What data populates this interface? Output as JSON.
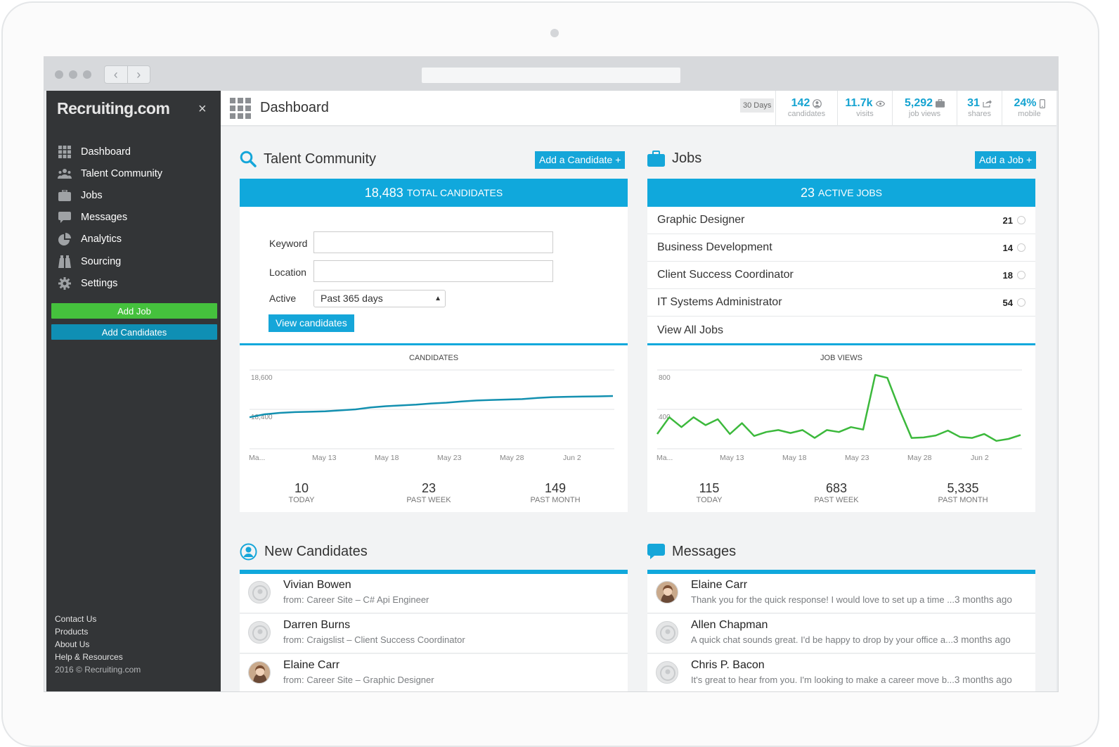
{
  "brand": "Recruiting.com",
  "page_title": "Dashboard",
  "sidebar": {
    "items": [
      {
        "label": "Dashboard",
        "icon": "grid-icon"
      },
      {
        "label": "Talent Community",
        "icon": "people-icon"
      },
      {
        "label": "Jobs",
        "icon": "briefcase-icon"
      },
      {
        "label": "Messages",
        "icon": "chat-icon"
      },
      {
        "label": "Analytics",
        "icon": "pie-chart-icon"
      },
      {
        "label": "Sourcing",
        "icon": "binoculars-icon"
      },
      {
        "label": "Settings",
        "icon": "gear-icon"
      }
    ],
    "add_job": "Add Job",
    "add_candidates": "Add Candidates",
    "footer": [
      "Contact Us",
      "Products",
      "About Us",
      "Help & Resources"
    ],
    "copyright": "2016 © Recruiting.com"
  },
  "header": {
    "period": "30 Days",
    "stats": [
      {
        "value": "142",
        "label": "candidates",
        "icon": "person-icon"
      },
      {
        "value": "11.7k",
        "label": "visits",
        "icon": "eye-icon"
      },
      {
        "value": "5,292",
        "label": "job views",
        "icon": "briefcase-icon"
      },
      {
        "value": "31",
        "label": "shares",
        "icon": "share-icon"
      },
      {
        "value": "24%",
        "label": "mobile",
        "icon": "phone-icon"
      }
    ]
  },
  "talent": {
    "title": "Talent Community",
    "add_button": "Add a Candidate +",
    "total_value": "18,483",
    "total_label": "Total Candidates",
    "keyword_label": "Keyword",
    "keyword_value": "",
    "location_label": "Location",
    "location_value": "",
    "active_label": "Active",
    "active_value": "Past 365 days",
    "view_button": "View candidates",
    "chart_title": "Candidates",
    "kpis": [
      {
        "n": "10",
        "t": "Today"
      },
      {
        "n": "23",
        "t": "Past Week"
      },
      {
        "n": "149",
        "t": "Past Month"
      }
    ]
  },
  "jobs": {
    "title": "Jobs",
    "add_button": "Add a Job +",
    "total_value": "23",
    "total_label": "Active Jobs",
    "rows": [
      {
        "name": "Graphic Designer",
        "count": "21"
      },
      {
        "name": "Business Development",
        "count": "14"
      },
      {
        "name": "Client Success Coordinator",
        "count": "18"
      },
      {
        "name": "IT Systems Administrator",
        "count": "54"
      }
    ],
    "view_all": "View All Jobs",
    "chart_title": "Job Views",
    "kpis": [
      {
        "n": "115",
        "t": "Today"
      },
      {
        "n": "683",
        "t": "Past Week"
      },
      {
        "n": "5,335",
        "t": "Past Month"
      }
    ]
  },
  "new_candidates": {
    "title": "New Candidates",
    "rows": [
      {
        "name": "Vivian Bowen",
        "sub": "from: Career Site – C# Api Engineer",
        "photo": false
      },
      {
        "name": "Darren Burns",
        "sub": "from: Craigslist – Client Success Coordinator",
        "photo": false
      },
      {
        "name": "Elaine Carr",
        "sub": "from: Career Site – Graphic Designer",
        "photo": true
      }
    ]
  },
  "messages": {
    "title": "Messages",
    "rows": [
      {
        "name": "Elaine Carr",
        "text": "Thank you for the quick response! I would love to set up a time ...",
        "ago": "3 months ago",
        "photo": true
      },
      {
        "name": "Allen Chapman",
        "text": "A quick chat sounds great. I'd be happy to drop by your office a...",
        "ago": "3 months ago",
        "photo": false
      },
      {
        "name": "Chris P. Bacon",
        "text": "It's great to hear from you. I'm looking to make a career move b...",
        "ago": "3 months ago",
        "photo": false
      }
    ]
  },
  "chart_data": [
    {
      "type": "line",
      "title": "Candidates",
      "color": "#1390b0",
      "x_ticks": [
        "Ma...",
        "May 13",
        "May 18",
        "May 23",
        "May 28",
        "Jun 2"
      ],
      "y_ticks": [
        "18,600",
        "18,400"
      ],
      "ylim": [
        18200,
        18600
      ],
      "values": [
        18360,
        18375,
        18382,
        18386,
        18388,
        18390,
        18395,
        18400,
        18410,
        18416,
        18420,
        18424,
        18430,
        18434,
        18440,
        18445,
        18448,
        18450,
        18452,
        18458,
        18462,
        18464,
        18465,
        18466,
        18468
      ]
    },
    {
      "type": "line",
      "title": "Job Views",
      "color": "#3cb93c",
      "x_ticks": [
        "Ma...",
        "May 13",
        "May 18",
        "May 23",
        "May 28",
        "Jun 2"
      ],
      "y_ticks": [
        "800",
        "400"
      ],
      "ylim": [
        0,
        800
      ],
      "values": [
        150,
        320,
        220,
        320,
        240,
        300,
        150,
        260,
        130,
        170,
        190,
        160,
        190,
        110,
        190,
        170,
        220,
        195,
        750,
        720,
        400,
        110,
        115,
        135,
        185,
        120,
        110,
        150,
        80,
        100,
        140
      ]
    }
  ]
}
